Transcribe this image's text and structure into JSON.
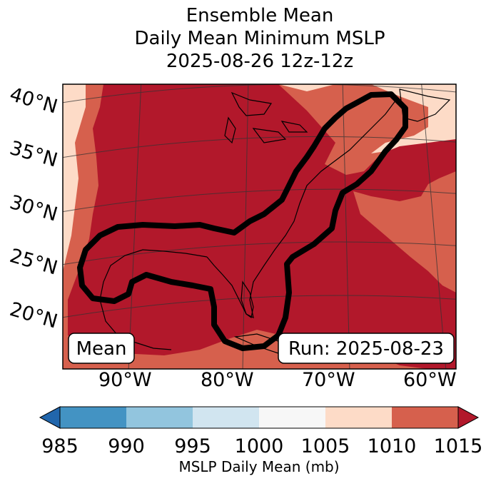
{
  "title": {
    "line1": "Ensemble Mean",
    "line2": "Daily Mean Minimum MSLP",
    "line3": "2025-08-26 12z-12z"
  },
  "map": {
    "lat_labels": [
      "40°N",
      "35°N",
      "30°N",
      "25°N",
      "20°N"
    ],
    "lon_labels": [
      "90°W",
      "80°W",
      "70°W",
      "60°W"
    ],
    "mean_box": "Mean",
    "run_box": "Run: 2025-08-23"
  },
  "colorbar": {
    "ticks": [
      "985",
      "990",
      "995",
      "1000",
      "1005",
      "1010",
      "1015"
    ],
    "label": "MSLP Daily Mean (mb)",
    "colors": [
      "#2166ac",
      "#4393c3",
      "#92c5de",
      "#d1e5f0",
      "#f7f7f7",
      "#fddbc7",
      "#d6604d",
      "#b2182b"
    ]
  },
  "fill_colors": {
    "outer": "#fddbc7",
    "mid": "#d6604d",
    "inner": "#b2182b"
  }
}
